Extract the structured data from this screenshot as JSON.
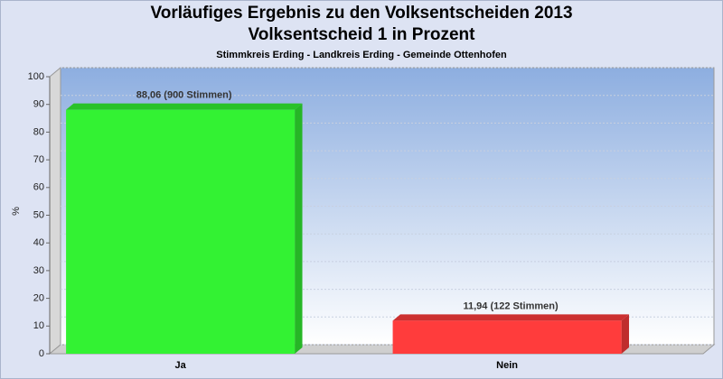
{
  "chart_data": {
    "type": "bar3d",
    "title": [
      "Vorläufiges Ergebnis zu den Volksentscheiden 2013",
      "Volksentscheid 1 in Prozent"
    ],
    "subtitle": "Stimmkreis Erding - Landkreis Erding - Gemeinde Ottenhofen",
    "y_label": "%",
    "categories": [
      "Ja",
      "Nein"
    ],
    "values": [
      88.06,
      11.94
    ],
    "value_labels": [
      "88,06 (900 Stimmen)",
      "11,94 (122 Stimmen)"
    ],
    "colors": [
      "#33f233",
      "#ff3c3c"
    ],
    "ylim": [
      0,
      100
    ],
    "yticks": [
      0,
      10,
      20,
      30,
      40,
      50,
      60,
      70,
      80,
      90,
      100
    ],
    "grid": true
  }
}
